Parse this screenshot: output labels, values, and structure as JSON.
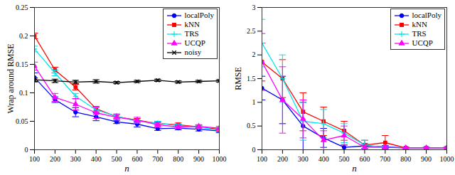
{
  "chart_data": [
    {
      "type": "line",
      "xlabel": "n",
      "ylabel": "Wrap around RMSE",
      "x": [
        100,
        200,
        300,
        400,
        500,
        600,
        700,
        800,
        900,
        1000
      ],
      "xlim": [
        100,
        1000
      ],
      "xticks": [
        100,
        200,
        300,
        400,
        500,
        600,
        700,
        800,
        900,
        1000
      ],
      "ylim": [
        0,
        0.25
      ],
      "yticks": [
        0,
        0.05,
        0.1,
        0.15,
        0.2,
        0.25
      ],
      "legend": "upper right",
      "series": [
        {
          "name": "localPoly",
          "color": "#0000ff",
          "marker": "circle",
          "values": [
            0.127,
            0.088,
            0.066,
            0.058,
            0.049,
            0.045,
            0.037,
            0.038,
            0.036,
            0.033
          ],
          "error": [
            0.008,
            0.005,
            0.008,
            0.007,
            0.003,
            0.005,
            0.003,
            0.003,
            0.003,
            0.003
          ]
        },
        {
          "name": "kNN",
          "color": "#ff0000",
          "marker": "square",
          "values": [
            0.2,
            0.14,
            0.11,
            0.072,
            0.058,
            0.052,
            0.046,
            0.044,
            0.04,
            0.036
          ],
          "error": [
            0.005,
            0.005,
            0.005,
            0.004,
            0.003,
            0.003,
            0.003,
            0.003,
            0.003,
            0.003
          ]
        },
        {
          "name": "TRS",
          "color": "#00e5ee",
          "marker": "plus",
          "values": [
            0.177,
            0.135,
            0.094,
            0.07,
            0.059,
            0.05,
            0.047,
            0.042,
            0.04,
            0.034
          ],
          "error": [
            0.005,
            0.005,
            0.005,
            0.004,
            0.003,
            0.003,
            0.003,
            0.003,
            0.003,
            0.003
          ]
        },
        {
          "name": "UCQP",
          "color": "#ff00ff",
          "marker": "triangle",
          "values": [
            0.147,
            0.092,
            0.08,
            0.065,
            0.057,
            0.052,
            0.044,
            0.04,
            0.041,
            0.038
          ],
          "error": [
            0.007,
            0.007,
            0.01,
            0.01,
            0.006,
            0.005,
            0.004,
            0.003,
            0.003,
            0.003
          ]
        },
        {
          "name": "noisy",
          "color": "#000000",
          "marker": "times",
          "values": [
            0.123,
            0.121,
            0.119,
            0.12,
            0.118,
            0.12,
            0.122,
            0.119,
            0.12,
            0.121
          ],
          "error": [
            0.003,
            0.003,
            0.003,
            0.003,
            0.002,
            0.002,
            0.002,
            0.002,
            0.002,
            0.002
          ]
        }
      ]
    },
    {
      "type": "line",
      "xlabel": "n",
      "ylabel": "RMSE",
      "x": [
        100,
        200,
        300,
        400,
        500,
        600,
        700,
        800,
        900,
        1000
      ],
      "xlim": [
        100,
        1000
      ],
      "xticks": [
        100,
        200,
        300,
        400,
        500,
        600,
        700,
        800,
        900,
        1000
      ],
      "ylim": [
        0,
        3
      ],
      "yticks": [
        0,
        0.5,
        1,
        1.5,
        2,
        2.5,
        3
      ],
      "legend": "upper right",
      "series": [
        {
          "name": "localPoly",
          "color": "#0000ff",
          "marker": "circle",
          "values": [
            1.3,
            1.05,
            0.5,
            0.25,
            0.05,
            0.08,
            0.06,
            0.04,
            0.04,
            0.04
          ],
          "error": [
            0.25,
            0.5,
            0.5,
            0.2,
            0.05,
            0.05,
            0.03,
            0.01,
            0.01,
            0.01
          ]
        },
        {
          "name": "kNN",
          "color": "#ff0000",
          "marker": "square",
          "values": [
            1.85,
            1.5,
            0.8,
            0.6,
            0.4,
            0.1,
            0.15,
            0.04,
            0.04,
            0.04
          ],
          "error": [
            0.4,
            0.4,
            0.4,
            0.3,
            0.2,
            0.1,
            0.15,
            0.02,
            0.01,
            0.01
          ]
        },
        {
          "name": "TRS",
          "color": "#00e5ee",
          "marker": "plus",
          "values": [
            2.25,
            1.5,
            0.6,
            0.55,
            0.35,
            0.1,
            0.05,
            0.04,
            0.04,
            0.04
          ],
          "error": [
            0.5,
            0.5,
            0.4,
            0.3,
            0.2,
            0.1,
            0.03,
            0.01,
            0.01,
            0.01
          ]
        },
        {
          "name": "UCQP",
          "color": "#ff00ff",
          "marker": "triangle",
          "values": [
            1.85,
            1.05,
            0.65,
            0.2,
            0.3,
            0.05,
            0.05,
            0.04,
            0.04,
            0.04
          ],
          "error": [
            0.6,
            0.7,
            0.4,
            0.2,
            0.2,
            0.05,
            0.03,
            0.01,
            0.01,
            0.01
          ]
        }
      ]
    }
  ]
}
